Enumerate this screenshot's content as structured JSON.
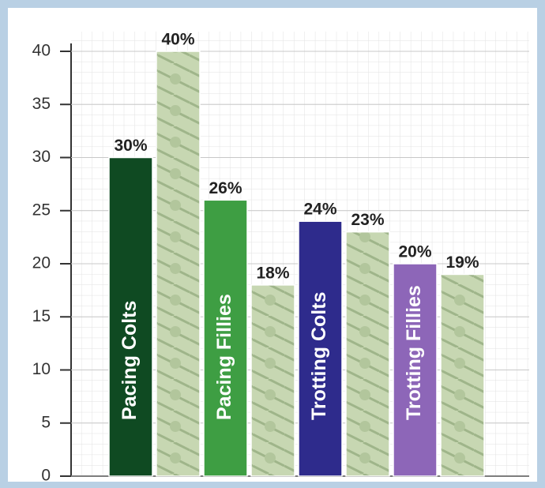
{
  "chart_data": {
    "type": "bar",
    "categories": [
      "Pacing Colts",
      "Pacing Fillies",
      "Trotting Colts",
      "Trotting Fillies"
    ],
    "series": [
      {
        "colors": [
          "#0f4a22",
          "#3e9e43",
          "#2e2b8c",
          "#8d66b8"
        ],
        "values": [
          30,
          26,
          24,
          20
        ],
        "value_labels": [
          "30%",
          "26%",
          "24%",
          "20%"
        ]
      },
      {
        "color": "#c7d7b2",
        "values": [
          40,
          18,
          23,
          19
        ],
        "value_labels": [
          "40%",
          "18%",
          "23%",
          "19%"
        ]
      }
    ],
    "ylim": [
      0,
      40
    ],
    "yticks": [
      0,
      5,
      10,
      15,
      20,
      25,
      30,
      35,
      40
    ],
    "grid": true
  }
}
